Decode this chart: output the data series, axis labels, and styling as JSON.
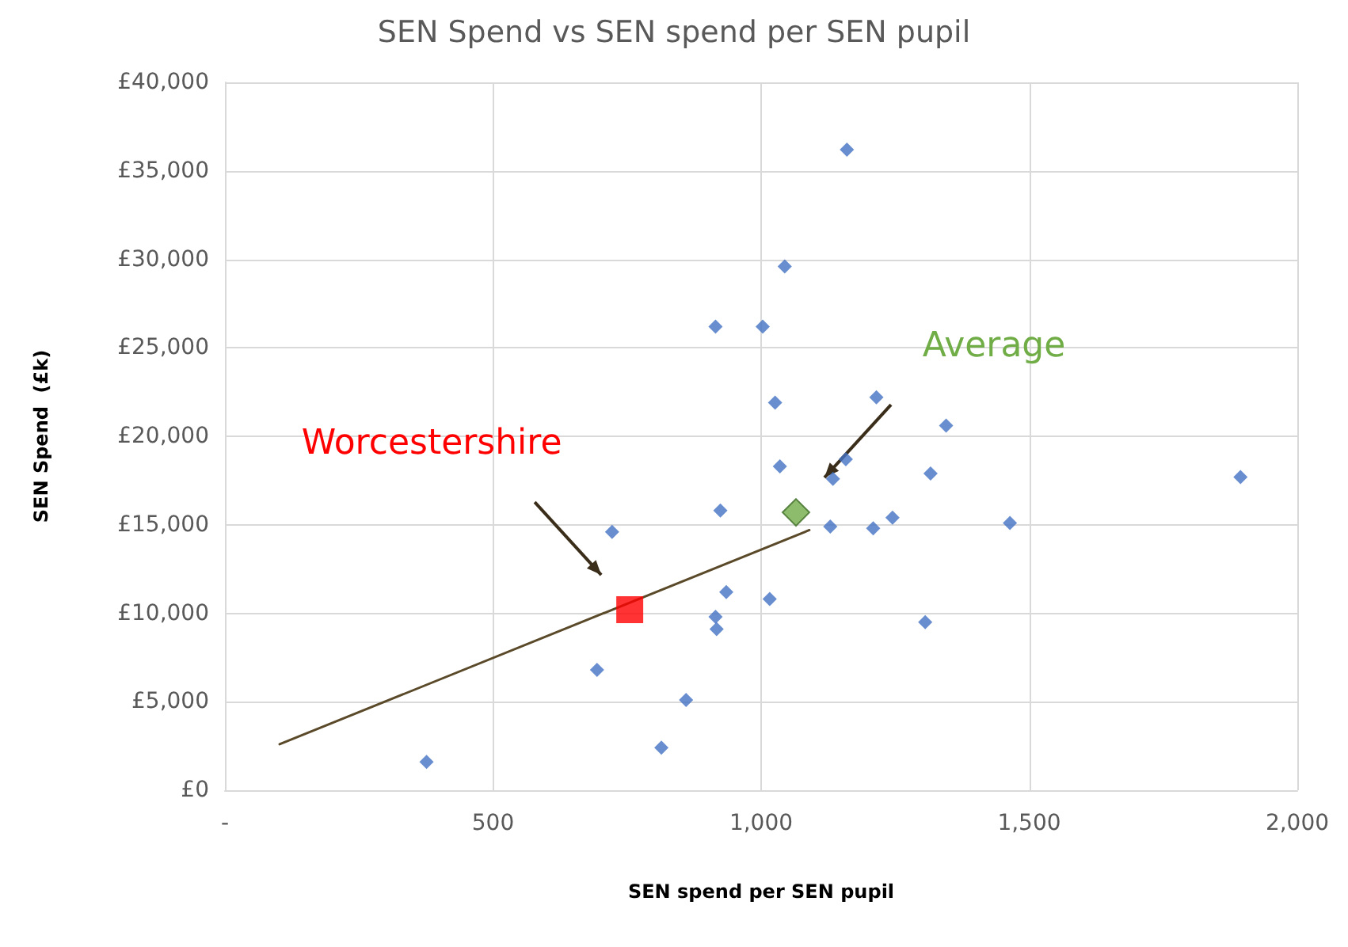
{
  "chart_data": {
    "type": "scatter",
    "title": "SEN Spend vs SEN spend per SEN pupil",
    "xlabel": "SEN spend per SEN pupil",
    "ylabel": "SEN Spend  (£k)",
    "xlim": [
      0,
      2000
    ],
    "xticks": [
      {
        "value": 0,
        "label": "-"
      },
      500,
      {
        "value": 1000,
        "label": "1,000"
      },
      {
        "value": 1500,
        "label": "1,500"
      },
      {
        "value": 2000,
        "label": "2,000"
      }
    ],
    "ylim": [
      0,
      40000
    ],
    "yticks": [
      {
        "value": 0,
        "label": "£0"
      },
      {
        "value": 5000,
        "label": "£5,000"
      },
      {
        "value": 10000,
        "label": "£10,000"
      },
      {
        "value": 15000,
        "label": "£15,000"
      },
      {
        "value": 20000,
        "label": "£20,000"
      },
      {
        "value": 25000,
        "label": "£25,000"
      },
      {
        "value": 30000,
        "label": "£30,000"
      },
      {
        "value": 35000,
        "label": "£35,000"
      },
      {
        "value": 40000,
        "label": "£40,000"
      }
    ],
    "grid": true,
    "legend": false,
    "series": [
      {
        "color": "#4472c4",
        "marker": "diamond",
        "x": [
          1160,
          1044,
          915,
          1003,
          1026,
          1215,
          1345,
          1158,
          1134,
          1316,
          1894,
          1035,
          1129,
          1209,
          1245,
          1464,
          1306,
          924,
          722,
          935,
          1016,
          915,
          917,
          694,
          860,
          814,
          376
        ],
        "values": [
          36200,
          29600,
          26200,
          26200,
          21900,
          22200,
          20600,
          18700,
          17600,
          17900,
          17700,
          18300,
          14900,
          14800,
          15400,
          15100,
          9500,
          15800,
          14600,
          11200,
          10800,
          9800,
          9100,
          6800,
          5100,
          2400,
          1600
        ]
      },
      {
        "type": "line",
        "color": "#5b4a2a",
        "marker": "none",
        "line_style": "solid",
        "x": [
          102,
          1090
        ],
        "values": [
          2600,
          14700
        ]
      },
      {
        "name": "Worcestershire",
        "color": "#ff0000",
        "marker": "square",
        "x": [
          755
        ],
        "values": [
          10200
        ]
      },
      {
        "name": "Average",
        "color": "#70ad47",
        "marker": "diamond",
        "x": [
          1065
        ],
        "values": [
          15700
        ]
      }
    ]
  }
}
